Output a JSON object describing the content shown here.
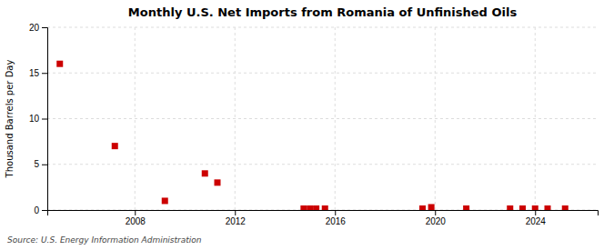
{
  "chart_data": {
    "type": "scatter",
    "title": "Monthly U.S. Net Imports from Romania of Unfinished Oils",
    "ylabel": "Thousand Barrels per Day",
    "annotations": [
      "Source: U.S. Energy Information Administration"
    ],
    "color": "#cc0000",
    "marker": "square",
    "grid": true,
    "xlim": [
      2004.5,
      2026.5
    ],
    "xticks": [
      2008,
      2012,
      2016,
      2020,
      2024
    ],
    "ylim": [
      0,
      20
    ],
    "yticks": [
      0,
      5,
      10,
      15,
      20
    ],
    "x": [
      2005.0,
      2007.2,
      2009.2,
      2010.8,
      2011.3,
      2014.75,
      2015.0,
      2015.25,
      2015.6,
      2019.5,
      2019.85,
      2021.25,
      2023.0,
      2023.5,
      2024.0,
      2024.5,
      2025.2
    ],
    "values": [
      16.0,
      7.0,
      1.0,
      4.0,
      3.0,
      0.15,
      0.15,
      0.15,
      0.15,
      0.15,
      0.3,
      0.15,
      0.15,
      0.15,
      0.15,
      0.15,
      0.15
    ]
  }
}
